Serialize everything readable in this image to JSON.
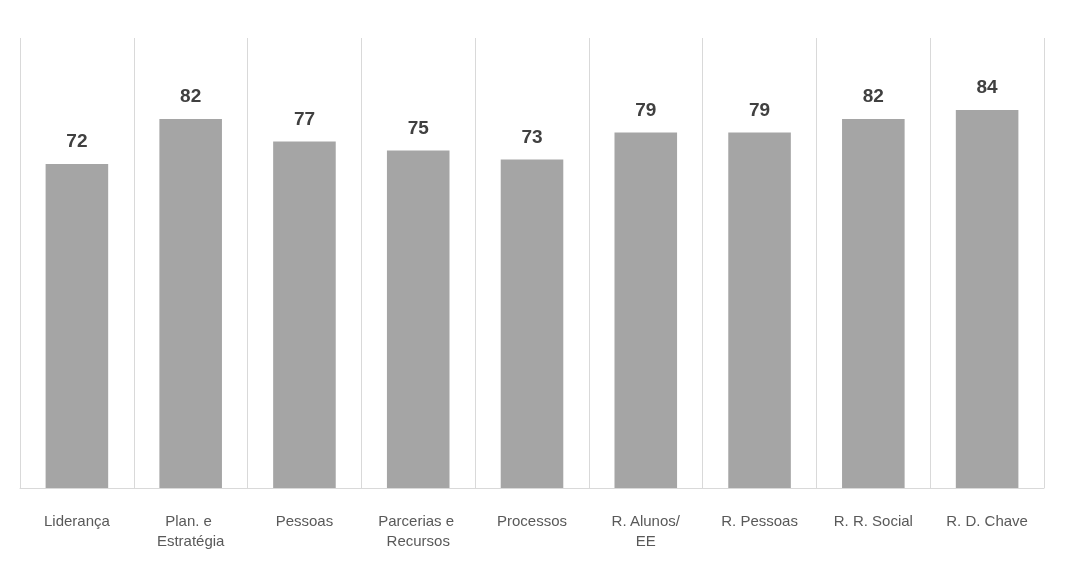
{
  "chart_data": {
    "type": "bar",
    "categories": [
      "Liderança",
      "Plan. e Estratégia",
      "Pessoas",
      "Parcerias e Recursos",
      "Processos",
      "R. Alunos/EE",
      "R. Pessoas",
      "R. R. Social",
      "R. D. Chave"
    ],
    "values": [
      72,
      82,
      77,
      75,
      73,
      79,
      79,
      82,
      84
    ],
    "color": "#a5a5a5",
    "data_labels": true,
    "ylim": [
      0,
      100
    ],
    "tick_labels": "x",
    "grid": "x"
  }
}
